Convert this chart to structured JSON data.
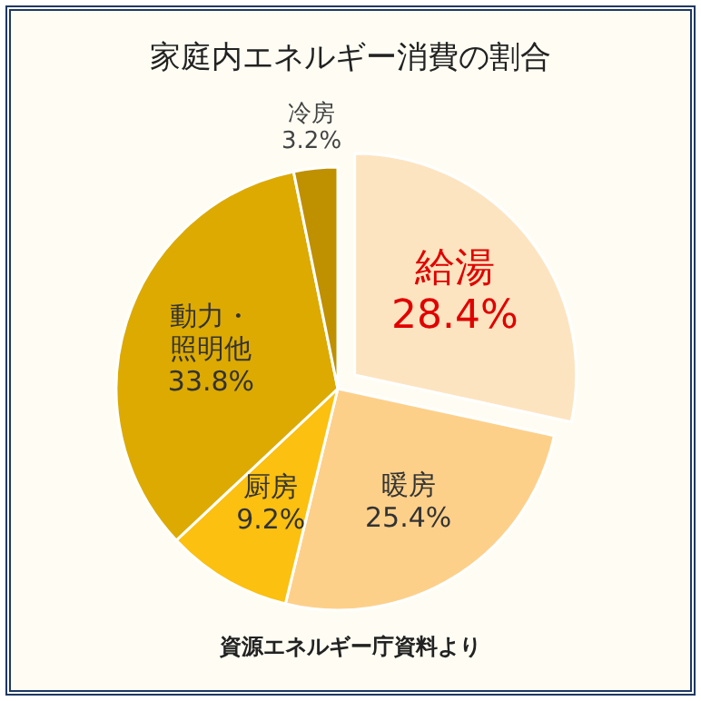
{
  "chart_data": {
    "type": "pie",
    "title": "家庭内エネルギー消費の割合",
    "categories": [
      "給湯",
      "暖房",
      "厨房",
      "動力・照明他",
      "冷房"
    ],
    "values": [
      28.4,
      25.4,
      9.2,
      33.8,
      3.2
    ],
    "colors": [
      "#fde4c0",
      "#fdd08a",
      "#fbc010",
      "#dcaa00",
      "#bf9000"
    ],
    "value_labels": [
      "28.4%",
      "25.4%",
      "9.2%",
      "33.8%",
      "3.2%"
    ],
    "annotations": [
      "資源エネルギー庁資料より"
    ]
  }
}
